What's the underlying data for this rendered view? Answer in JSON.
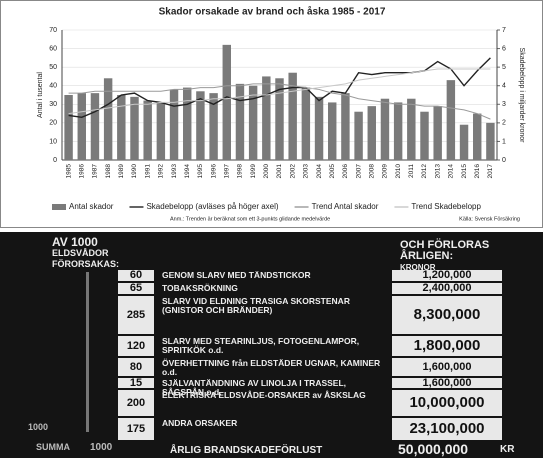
{
  "chart_data": {
    "type": "bar",
    "title": "Skador orsakade av brand och åska 1985 - 2017",
    "ylabel": "Antal i tusental",
    "y2label": "Skadebelopp i miljarder kronor",
    "categories": [
      "1985",
      "1986",
      "1987",
      "1988",
      "1989",
      "1990",
      "1991",
      "1992",
      "1993",
      "1994",
      "1995",
      "1996",
      "1997",
      "1998",
      "1999",
      "2000",
      "2001",
      "2002",
      "2003",
      "2004",
      "2005",
      "2006",
      "2007",
      "2008",
      "2009",
      "2010",
      "2011",
      "2012",
      "2013",
      "2014",
      "2015",
      "2016",
      "2017"
    ],
    "series": [
      {
        "name": "Antal skador",
        "type": "bar",
        "color": "#7a7a7a",
        "values": [
          35,
          36,
          36,
          44,
          35,
          34,
          32,
          31,
          38,
          39,
          37,
          36,
          62,
          41,
          40,
          45,
          44,
          47,
          39,
          34,
          31,
          36,
          26,
          29,
          33,
          31,
          33,
          26,
          29,
          43,
          19,
          25,
          20
        ]
      },
      {
        "name": "Skadebelopp (avläses på höger axel)",
        "type": "line",
        "axis": "y2",
        "color": "#222222",
        "values": [
          2.4,
          2.3,
          2.6,
          3.0,
          3.5,
          3.6,
          3.2,
          3.1,
          2.9,
          3.0,
          3.3,
          3.0,
          3.4,
          3.2,
          3.3,
          3.5,
          3.8,
          3.9,
          3.9,
          3.2,
          3.7,
          3.6,
          4.7,
          4.6,
          4.7,
          4.7,
          4.7,
          4.8,
          5.3,
          4.9,
          4.0,
          4.8,
          5.5
        ]
      },
      {
        "name": "Trend Antal skador",
        "type": "line",
        "color": "#9a9a9a",
        "values": [
          36,
          36,
          37,
          37,
          37,
          37,
          37,
          37,
          38,
          38,
          39,
          39,
          40,
          40,
          41,
          41,
          41,
          40,
          39,
          38,
          36,
          35,
          33,
          32,
          31,
          30,
          30,
          29,
          29,
          28,
          27,
          25,
          22
        ]
      },
      {
        "name": "Trend Skadebelopp",
        "type": "line",
        "axis": "y2",
        "color": "#c8c8c8",
        "values": [
          2.5,
          2.6,
          2.7,
          2.8,
          2.9,
          3.0,
          3.0,
          3.1,
          3.1,
          3.2,
          3.2,
          3.3,
          3.3,
          3.4,
          3.5,
          3.5,
          3.6,
          3.7,
          3.8,
          3.9,
          4.0,
          4.1,
          4.3,
          4.4,
          4.5,
          4.6,
          4.7,
          4.8,
          4.9,
          4.9,
          4.9,
          4.9,
          4.9
        ]
      }
    ],
    "ylim": [
      0,
      70
    ],
    "yticks": [
      0,
      10,
      20,
      30,
      40,
      50,
      60,
      70
    ],
    "y2lim": [
      0,
      7
    ],
    "y2ticks": [
      0,
      1,
      2,
      3,
      4,
      5,
      6,
      7
    ],
    "grid": true,
    "legend": "bottom",
    "note": "Anm.: Trenden är beräknat som ett 3-punkts glidande medelvärde",
    "source": "Källa: Svensk Försäkring"
  },
  "poster": {
    "header_left": [
      "AV 1000",
      "ELDSVÅDOR",
      "FÖRORSAKAS:"
    ],
    "header_right": [
      "OCH FÖRLORAS",
      "ÅRLIGEN:",
      "KRONOR"
    ],
    "rows": [
      {
        "count": 60,
        "cause": "GENOM SLARV MED TÄNDSTICKOR",
        "amount": "1,200,000"
      },
      {
        "count": 65,
        "cause": "TOBAKSRÖKNING",
        "amount": "2,400,000"
      },
      {
        "count": 285,
        "cause": "SLARV VID ELDNING TRASIGA SKORSTENAR (GNISTOR OCH BRÄNDER)",
        "amount": "8,300,000"
      },
      {
        "count": 120,
        "cause": "SLARV MED STEARINLJUS, FOTOGENLAMPOR, SPRITKÖK o.d.",
        "amount": "1,800,000"
      },
      {
        "count": 80,
        "cause": "ÖVERHETTNING från ELDSTÄDER UGNAR, KAMINER o.d.",
        "amount": "1,600,000"
      },
      {
        "count": 15,
        "cause": "SJÄLVANTÄNDNING AV LINOLJA I TRASSEL, SÅGSPÅN o.d.",
        "amount": "1,600,000"
      },
      {
        "count": 200,
        "cause": "ELEKTRISKA ELDSVÅDE-ORSAKER av ÅSKSLAG",
        "amount": "10,000,000"
      },
      {
        "count": 175,
        "cause": "ANDRA ORSAKER",
        "amount": "23,100,000"
      }
    ],
    "scale_label": "1000",
    "sum_label": "SUMMA",
    "sum": 1000,
    "footer_label": "ÅRLIG BRANDSKADEFÖRLUST",
    "footer_amount": "50,000,000",
    "currency": "KR"
  }
}
